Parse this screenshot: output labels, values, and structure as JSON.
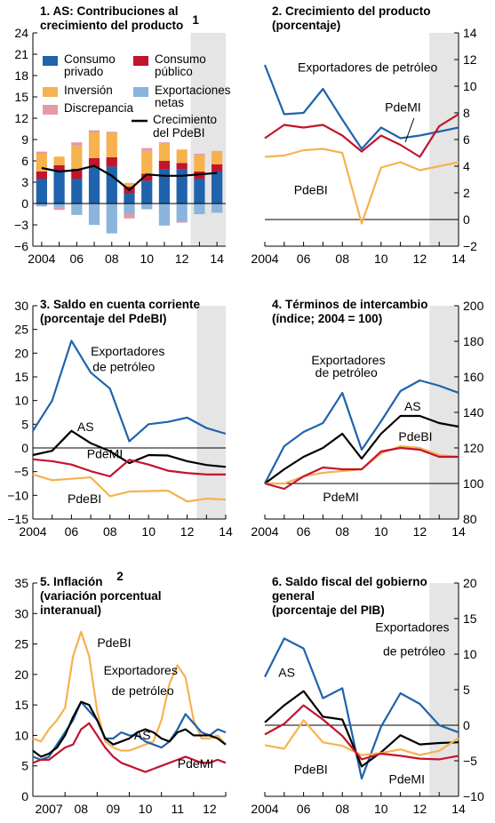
{
  "colors": {
    "blue": "#1f63ad",
    "red": "#c3142d",
    "orange": "#f6b24e",
    "lightblue": "#8ab4dc",
    "pink": "#e59aa8",
    "black": "#000000",
    "shade": "#e5e5e5"
  },
  "chart_data": [
    {
      "id": "p1",
      "type": "bar",
      "title": [
        "1. AS: Contribuciones al",
        "crecimiento del producto"
      ],
      "title_sup": "1",
      "x": [
        2004,
        2005,
        2006,
        2007,
        2008,
        2009,
        2010,
        2011,
        2012,
        2013,
        2014
      ],
      "xticks": [
        "2004",
        "06",
        "08",
        "10",
        "12",
        "14"
      ],
      "ylim": [
        -6,
        24
      ],
      "yticks": [
        -6,
        -3,
        0,
        3,
        6,
        9,
        12,
        15,
        18,
        21,
        24
      ],
      "shade_from": 2012.5,
      "series": [
        {
          "key": "consumo_privado",
          "name": [
            "Consumo",
            "privado"
          ],
          "values": [
            3.5,
            4.6,
            3.5,
            5.0,
            5.2,
            1.5,
            3.2,
            4.8,
            4.8,
            3.5,
            4.5
          ]
        },
        {
          "key": "consumo_publico",
          "name": [
            "Consumo",
            "público"
          ],
          "values": [
            1.0,
            0.8,
            1.4,
            1.4,
            1.3,
            0.9,
            1.0,
            1.2,
            0.9,
            1.0,
            1.0
          ]
        },
        {
          "key": "inversion",
          "name": [
            "Inversión"
          ],
          "values": [
            2.5,
            1.2,
            3.2,
            3.6,
            3.4,
            0.5,
            3.2,
            2.5,
            1.9,
            2.3,
            1.8
          ]
        },
        {
          "key": "exportaciones_netas",
          "name": [
            "Exportaciones",
            "netas"
          ],
          "values": [
            -0.4,
            -0.6,
            -1.6,
            -3.0,
            -4.2,
            -1.5,
            -0.8,
            -3.1,
            -2.5,
            -1.5,
            -1.3
          ]
        },
        {
          "key": "discrepancia",
          "name": [
            "Discrepancia"
          ],
          "values": [
            0.3,
            -0.3,
            0.5,
            0.3,
            0.2,
            -0.6,
            0.4,
            0.1,
            -0.2,
            0.2,
            0.1
          ]
        }
      ],
      "line": {
        "key": "crecimiento",
        "name": [
          "Crecimiento",
          "del PdeBI"
        ],
        "values": [
          5.0,
          4.5,
          4.7,
          5.3,
          3.9,
          1.9,
          4.1,
          3.9,
          3.9,
          4.1,
          4.3
        ]
      }
    },
    {
      "id": "p2",
      "type": "line",
      "title": [
        "2. Crecimiento del producto",
        "(porcentaje)"
      ],
      "x": [
        2004,
        2005,
        2006,
        2007,
        2008,
        2009,
        2010,
        2011,
        2012,
        2013,
        2014
      ],
      "xticks": [
        "2004",
        "06",
        "08",
        "10",
        "12",
        "14"
      ],
      "ylim": [
        -2,
        14
      ],
      "yticks": [
        -2,
        0,
        2,
        4,
        6,
        8,
        10,
        12,
        14
      ],
      "zero_line": true,
      "shade_from": 2012.5,
      "series": [
        {
          "key": "exportadores",
          "name": "Exportadores de petróleo",
          "values": [
            11.6,
            7.9,
            8.0,
            9.8,
            7.5,
            5.3,
            6.9,
            6.1,
            6.3,
            6.6,
            6.9
          ]
        },
        {
          "key": "pdemi",
          "name": "PdeMI",
          "values": [
            6.1,
            7.1,
            6.9,
            7.1,
            6.3,
            5.1,
            6.3,
            5.6,
            4.7,
            7.0,
            7.9
          ]
        },
        {
          "key": "pdebi",
          "name": "PdeBI",
          "values": [
            4.7,
            4.8,
            5.2,
            5.3,
            5.0,
            -0.3,
            3.9,
            4.3,
            3.7,
            4.0,
            4.3
          ]
        }
      ],
      "labels": [
        {
          "text": "Exportadores de petróleo",
          "x": 2005.7,
          "y": 11.1
        },
        {
          "text": "PdeMI",
          "x": 2010.2,
          "y": 8.1
        },
        {
          "text": "PdeBI",
          "x": 2005.5,
          "y": 1.9
        }
      ]
    },
    {
      "id": "p3",
      "type": "line",
      "title": [
        "3. Saldo en cuenta corriente",
        "(porcentaje del PdeBI)"
      ],
      "x": [
        2004,
        2005,
        2006,
        2007,
        2008,
        2009,
        2010,
        2011,
        2012,
        2013,
        2014
      ],
      "xticks": [
        "2004",
        "06",
        "08",
        "10",
        "12",
        "14"
      ],
      "ylim": [
        -15,
        30
      ],
      "yticks": [
        -15,
        -10,
        -5,
        0,
        5,
        10,
        15,
        20,
        25,
        30
      ],
      "zero_line": true,
      "shade_from": 2012.5,
      "series": [
        {
          "key": "exportadores",
          "name": "Exportadores de petróleo",
          "values": [
            3.6,
            10.0,
            22.6,
            15.9,
            12.5,
            1.4,
            5.0,
            5.5,
            6.4,
            4.2,
            3.0
          ]
        },
        {
          "key": "as",
          "name": "AS",
          "values": [
            -1.5,
            -0.6,
            3.6,
            1.0,
            -0.7,
            -3.2,
            -1.5,
            -1.6,
            -2.8,
            -3.6,
            -4.0
          ]
        },
        {
          "key": "pdemi",
          "name": "PdeMI",
          "values": [
            -2.4,
            -2.8,
            -3.5,
            -4.9,
            -6.0,
            -2.5,
            -3.5,
            -4.8,
            -5.3,
            -5.6,
            -5.6
          ]
        },
        {
          "key": "pdebi",
          "name": "PdeBI",
          "values": [
            -5.6,
            -6.8,
            -6.5,
            -6.2,
            -10.2,
            -9.2,
            -9.1,
            -9.0,
            -11.3,
            -10.7,
            -10.9
          ]
        }
      ],
      "labels": [
        {
          "text": "Exportadores",
          "x": 2007.0,
          "y": 19.5
        },
        {
          "text": "de petróleo",
          "x": 2007.1,
          "y": 16.2
        },
        {
          "text": "AS",
          "x": 2006.3,
          "y": 3.6
        },
        {
          "text": "PdeMI",
          "x": 2006.8,
          "y": -2.2
        },
        {
          "text": "PdeBI",
          "x": 2005.8,
          "y": -11.6
        }
      ]
    },
    {
      "id": "p4",
      "type": "line",
      "title": [
        "4. Términos de intercambio",
        "(índice; 2004 = 100)"
      ],
      "x": [
        2004,
        2005,
        2006,
        2007,
        2008,
        2009,
        2010,
        2011,
        2012,
        2013,
        2014
      ],
      "xticks": [
        "2004",
        "06",
        "08",
        "10",
        "12",
        "14"
      ],
      "ylim": [
        80,
        200
      ],
      "yticks": [
        80,
        100,
        120,
        140,
        160,
        180,
        200
      ],
      "ref_line": 100,
      "shade_from": 2012.5,
      "series": [
        {
          "key": "exportadores",
          "name": "Exportadores de petróleo",
          "values": [
            100,
            121,
            129,
            134,
            151,
            119,
            135,
            152,
            158,
            155,
            151
          ]
        },
        {
          "key": "as",
          "name": "AS",
          "values": [
            100,
            108,
            115,
            120,
            128,
            114,
            128,
            138,
            138,
            134,
            132
          ]
        },
        {
          "key": "pdebi",
          "name": "PdeBI",
          "values": [
            100,
            100,
            104,
            106,
            107,
            108,
            117,
            121,
            120,
            116,
            115
          ]
        },
        {
          "key": "pdemi",
          "name": "PdeMI",
          "values": [
            100,
            97,
            104,
            109,
            108,
            108,
            118,
            120,
            119,
            115,
            115
          ]
        }
      ],
      "labels": [
        {
          "text": "Exportadores",
          "x": 2006.4,
          "y": 167
        },
        {
          "text": "de petróleo",
          "x": 2006.6,
          "y": 160
        },
        {
          "text": "AS",
          "x": 2011.2,
          "y": 141
        },
        {
          "text": "PdeBI",
          "x": 2010.9,
          "y": 124
        },
        {
          "text": "PdeMI",
          "x": 2007.0,
          "y": 90
        }
      ]
    },
    {
      "id": "p5",
      "type": "line",
      "title": [
        "5. Inflación",
        "(variación porcentual",
        "interanual)"
      ],
      "title_sup": "2",
      "x": [
        2006.5,
        2006.75,
        2007.0,
        2007.25,
        2007.5,
        2007.75,
        2008.0,
        2008.25,
        2008.5,
        2008.75,
        2009.0,
        2009.25,
        2009.5,
        2009.75,
        2010.0,
        2010.25,
        2010.5,
        2010.75,
        2011.0,
        2011.25,
        2011.5,
        2011.75,
        2012.0,
        2012.25,
        2012.5
      ],
      "xticks": [
        "2007",
        "08",
        "09",
        "10",
        "11",
        "12"
      ],
      "xtick_pos": [
        2007,
        2008,
        2009,
        2010,
        2011,
        2012
      ],
      "xgrid": [
        2006.5,
        2007.5,
        2008.5,
        2009.5,
        2010.5,
        2011.5,
        2012.5
      ],
      "ylim": [
        0,
        35
      ],
      "yticks": [
        0,
        5,
        10,
        15,
        20,
        25,
        30,
        35
      ],
      "series": [
        {
          "key": "pdebi",
          "name": "PdeBI",
          "values": [
            9.5,
            9.0,
            11.0,
            12.5,
            14.5,
            23.0,
            27.0,
            23.0,
            14.0,
            9.0,
            8.0,
            7.5,
            7.5,
            8.0,
            8.5,
            9.0,
            12.5,
            18.5,
            21.5,
            19.5,
            12.5,
            9.5,
            9.5,
            10.0,
            8.5
          ]
        },
        {
          "key": "exportadores",
          "name": "Exportadores de petróleo",
          "values": [
            6.5,
            6.0,
            6.5,
            8.5,
            10.5,
            12.5,
            15.5,
            14.0,
            12.5,
            9.5,
            9.5,
            10.5,
            10.0,
            10.0,
            9.0,
            8.5,
            8.0,
            9.0,
            11.0,
            13.5,
            12.0,
            10.5,
            10.0,
            11.0,
            10.5
          ]
        },
        {
          "key": "as",
          "name": "AS",
          "values": [
            7.5,
            6.5,
            7.0,
            8.0,
            10.0,
            13.0,
            15.5,
            15.0,
            12.5,
            9.5,
            8.5,
            9.0,
            9.5,
            10.5,
            11.0,
            10.5,
            9.5,
            9.0,
            10.5,
            11.0,
            10.0,
            10.0,
            10.0,
            9.5,
            8.5
          ]
        },
        {
          "key": "pdemi",
          "name": "PdeMI",
          "values": [
            5.5,
            6.0,
            6.0,
            7.0,
            8.0,
            8.5,
            11.0,
            12.0,
            10.0,
            8.0,
            6.5,
            5.5,
            5.0,
            4.5,
            4.0,
            4.5,
            5.0,
            5.5,
            6.0,
            6.5,
            6.0,
            5.5,
            5.5,
            6.0,
            5.5
          ]
        }
      ],
      "labels": [
        {
          "text": "PdeBI",
          "x": 2008.5,
          "y": 24.5
        },
        {
          "text": "Exportadores",
          "x": 2008.7,
          "y": 20.0
        },
        {
          "text": "de petróleo",
          "x": 2008.95,
          "y": 16.6
        },
        {
          "text": "AS",
          "x": 2009.65,
          "y": 9.3
        },
        {
          "text": "PdeMI",
          "x": 2011.0,
          "y": 4.7
        }
      ]
    },
    {
      "id": "p6",
      "type": "line",
      "title": [
        "6. Saldo fiscal del gobierno",
        "general",
        "(porcentaje del PIB)"
      ],
      "x": [
        2004,
        2005,
        2006,
        2007,
        2008,
        2009,
        2010,
        2011,
        2012,
        2013,
        2014
      ],
      "xticks": [
        "2004",
        "06",
        "08",
        "10",
        "12",
        "14"
      ],
      "ylim": [
        -10,
        20
      ],
      "yticks": [
        -10,
        -5,
        0,
        5,
        10,
        15,
        20
      ],
      "zero_line": true,
      "shade_from": 2012.5,
      "series": [
        {
          "key": "exportadores",
          "name": "Exportadores de petróleo",
          "values": [
            6.8,
            12.2,
            10.8,
            3.8,
            5.2,
            -7.5,
            -0.2,
            4.5,
            3.0,
            0.0,
            -1.0
          ]
        },
        {
          "key": "as",
          "name": "AS",
          "values": [
            0.4,
            2.8,
            4.8,
            1.2,
            0.8,
            -5.8,
            -3.8,
            -1.4,
            -2.7,
            -2.5,
            -2.4
          ]
        },
        {
          "key": "pdebi",
          "name": "PdeBI",
          "values": [
            -2.8,
            -3.3,
            0.7,
            -2.4,
            -2.9,
            -4.2,
            -3.9,
            -3.4,
            -4.2,
            -3.6,
            -1.8
          ]
        },
        {
          "key": "pdemi",
          "name": "PdeMI",
          "values": [
            -1.3,
            0.2,
            2.8,
            0.8,
            -1.5,
            -4.8,
            -4.0,
            -4.3,
            -4.7,
            -4.8,
            -4.3
          ]
        }
      ],
      "labels": [
        {
          "text": "Exportadores",
          "x": 2009.7,
          "y": 13.2
        },
        {
          "text": "de petróleo",
          "x": 2010.1,
          "y": 9.8
        },
        {
          "text": "AS",
          "x": 2004.7,
          "y": 6.8
        },
        {
          "text": "PdeBI",
          "x": 2005.5,
          "y": -6.8
        },
        {
          "text": "PdeMI",
          "x": 2010.4,
          "y": -8.2
        }
      ]
    }
  ]
}
